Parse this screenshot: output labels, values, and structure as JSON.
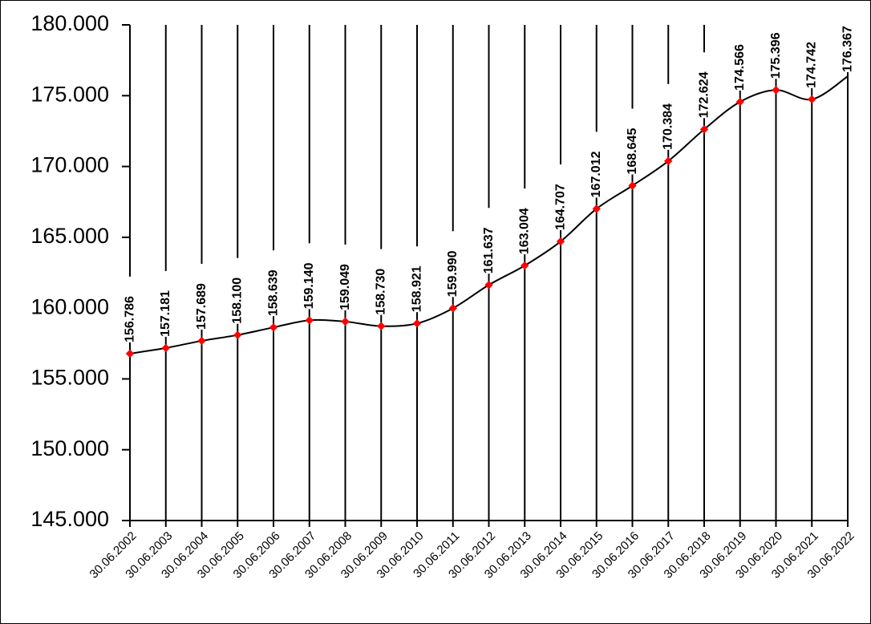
{
  "chart_data": {
    "type": "line",
    "title": "",
    "xlabel": "",
    "ylabel": "",
    "categories": [
      "30.06.2002",
      "30.06.2003",
      "30.06.2004",
      "30.06.2005",
      "30.06.2006",
      "30.06.2007",
      "30.06.2008",
      "30.06.2009",
      "30.06.2010",
      "30.06.2011",
      "30.06.2012",
      "30.06.2013",
      "30.06.2014",
      "30.06.2015",
      "30.06.2016",
      "30.06.2017",
      "30.06.2018",
      "30.06.2019",
      "30.06.2020",
      "30.06.2021",
      "30.06.2022"
    ],
    "values": [
      156786,
      157181,
      157689,
      158100,
      158639,
      159140,
      159049,
      158730,
      158921,
      159990,
      161637,
      163004,
      164707,
      167012,
      168645,
      170384,
      172624,
      174566,
      175396,
      174742,
      176367
    ],
    "data_labels": [
      "156.786",
      "157.181",
      "157.689",
      "158.100",
      "158.639",
      "159.140",
      "159.049",
      "158.730",
      "158.921",
      "159.990",
      "161.637",
      "163.004",
      "164.707",
      "167.012",
      "168.645",
      "170.384",
      "172.624",
      "174.566",
      "175.396",
      "174.742",
      "176.367"
    ],
    "ylim": [
      145000,
      180000
    ],
    "yticks": [
      145000,
      150000,
      155000,
      160000,
      165000,
      170000,
      175000,
      180000
    ],
    "ytick_labels": [
      "145.000",
      "150.000",
      "155.000",
      "160.000",
      "165.000",
      "170.000",
      "175.000",
      "180.000"
    ],
    "grid": false,
    "vertical_drop_lines": true,
    "marker_color": "#ff0000",
    "line_color": "#000000"
  }
}
